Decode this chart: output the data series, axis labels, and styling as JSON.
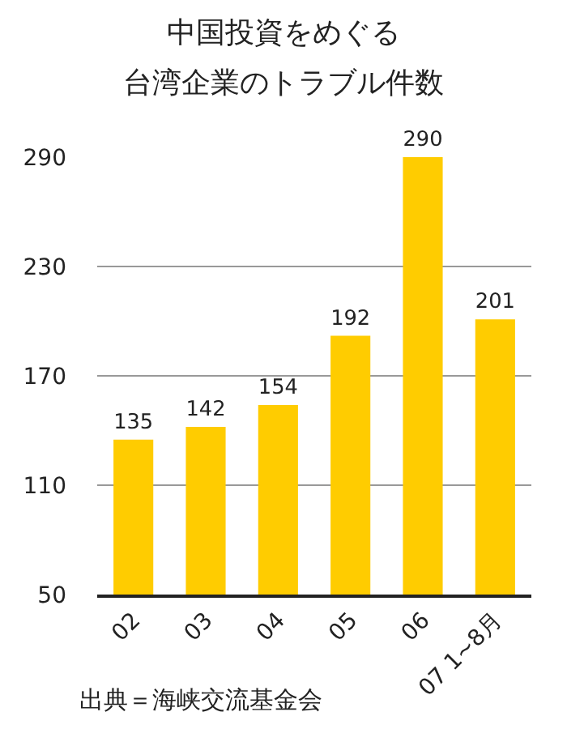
{
  "chart_data": {
    "type": "bar",
    "title": "中国投資をめぐる",
    "subtitle": "台湾企業のトラブル件数",
    "categories": [
      "02",
      "03",
      "04",
      "05",
      "06",
      "07 1~8月"
    ],
    "values": [
      135,
      142,
      154,
      192,
      290,
      201
    ],
    "color": "#ffcc00",
    "ylim": [
      50,
      290
    ],
    "yticks": [
      50,
      110,
      170,
      230,
      290
    ],
    "grid": "y",
    "data_labels": true,
    "annotations": [
      "出典＝海峡交流基金会"
    ]
  }
}
